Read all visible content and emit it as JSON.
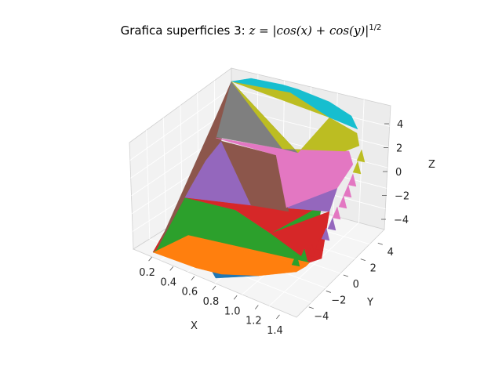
{
  "chart_data": {
    "type": "surface3d",
    "title_text": "Grafica superficies 3: ",
    "title_formula": "z = |cos(x) + cos(y)|",
    "title_exponent": "1/2",
    "xlabel": "X",
    "ylabel": "Y",
    "zlabel": "Z",
    "xlim": [
      0.1,
      1.5
    ],
    "ylim": [
      -5,
      5
    ],
    "zlim": [
      -5,
      5
    ],
    "x_ticks": [
      "0.2",
      "0.4",
      "0.6",
      "0.8",
      "1.0",
      "1.2",
      "1.4"
    ],
    "y_ticks": [
      "−4",
      "−2",
      "0",
      "2",
      "4"
    ],
    "z_ticks": [
      "−4",
      "−2",
      "0",
      "2",
      "4"
    ],
    "grid": true,
    "surface_colors": [
      "#1f77b4",
      "#ff7f0e",
      "#2ca02c",
      "#d62728",
      "#9467bd",
      "#8c564b",
      "#e377c2",
      "#7f7f7f",
      "#bcbd22",
      "#17becf"
    ]
  }
}
